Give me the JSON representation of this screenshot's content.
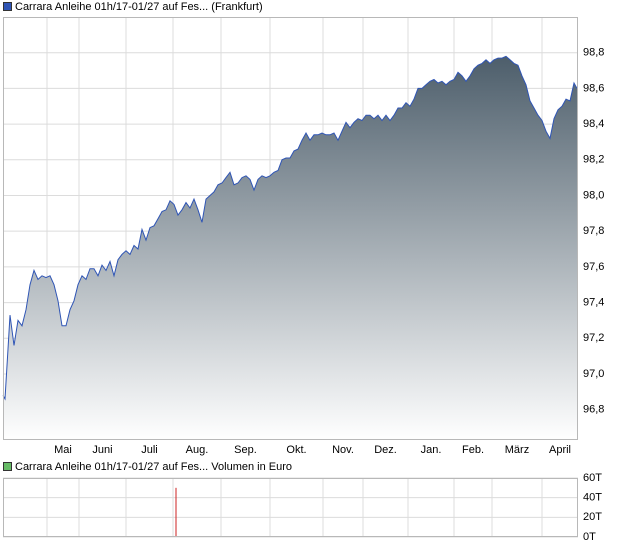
{
  "chart_data": [
    {
      "type": "area",
      "series": [
        {
          "name": "Carrara Anleihe 01h/17-01/27 auf Fes... (Frankfurt)",
          "color": "#2f55b5",
          "area_color": "#4d5e6b",
          "x": [
            0,
            2,
            5,
            7,
            11,
            15,
            19,
            23,
            27,
            31,
            35,
            39,
            43,
            47,
            51,
            55,
            59,
            63,
            67,
            71,
            75,
            79,
            83,
            87,
            91,
            95,
            99,
            103,
            107,
            111,
            115,
            119,
            123,
            127,
            131,
            135,
            139,
            143,
            147,
            151,
            155,
            159,
            163,
            167,
            171,
            175,
            179,
            183,
            187,
            191,
            195,
            199,
            203,
            207,
            211,
            215,
            219,
            223,
            227,
            231,
            235,
            239,
            243,
            247,
            251,
            255,
            259,
            263,
            267,
            271,
            275,
            279,
            283,
            287,
            291,
            295,
            299,
            303,
            307,
            311,
            315,
            319,
            323,
            327,
            331,
            335,
            339,
            343,
            347,
            351,
            355,
            359,
            363,
            367,
            371,
            375,
            379,
            383,
            387,
            391,
            395,
            399,
            403,
            407,
            411,
            415,
            419,
            423,
            427,
            431,
            435,
            439,
            443,
            447,
            451,
            455,
            459,
            463,
            467,
            471,
            475,
            479,
            483,
            487,
            491,
            495,
            499,
            503,
            507,
            511,
            515,
            519,
            523,
            527,
            531,
            535,
            539,
            543,
            547,
            551,
            555,
            559,
            563,
            567,
            571,
            574
          ],
          "values": [
            96.88,
            96.86,
            97.14,
            97.33,
            97.16,
            97.3,
            97.27,
            97.36,
            97.5,
            97.58,
            97.53,
            97.55,
            97.54,
            97.55,
            97.5,
            97.41,
            97.27,
            97.27,
            97.36,
            97.41,
            97.5,
            97.55,
            97.53,
            97.59,
            97.59,
            97.55,
            97.61,
            97.58,
            97.63,
            97.55,
            97.64,
            97.67,
            97.69,
            97.67,
            97.72,
            97.7,
            97.81,
            97.75,
            97.82,
            97.83,
            97.87,
            97.91,
            97.92,
            97.97,
            97.95,
            97.89,
            97.92,
            97.96,
            97.93,
            97.98,
            97.92,
            97.85,
            97.98,
            98.0,
            98.02,
            98.06,
            98.07,
            98.1,
            98.13,
            98.06,
            98.07,
            98.1,
            98.11,
            98.09,
            98.03,
            98.09,
            98.11,
            98.1,
            98.11,
            98.13,
            98.14,
            98.2,
            98.21,
            98.21,
            98.25,
            98.26,
            98.31,
            98.35,
            98.31,
            98.34,
            98.34,
            98.35,
            98.34,
            98.34,
            98.35,
            98.31,
            98.36,
            98.41,
            98.38,
            98.41,
            98.43,
            98.42,
            98.45,
            98.45,
            98.43,
            98.45,
            98.42,
            98.45,
            98.42,
            98.45,
            98.49,
            98.49,
            98.52,
            98.5,
            98.54,
            98.6,
            98.6,
            98.62,
            98.64,
            98.65,
            98.63,
            98.64,
            98.62,
            98.64,
            98.65,
            98.69,
            98.67,
            98.64,
            98.67,
            98.71,
            98.73,
            98.74,
            98.76,
            98.74,
            98.76,
            98.77,
            98.77,
            98.78,
            98.76,
            98.74,
            98.73,
            98.67,
            98.62,
            98.53,
            98.49,
            98.45,
            98.42,
            98.36,
            98.32,
            98.43,
            98.48,
            98.5,
            98.54,
            98.53,
            98.63,
            98.6
          ]
        }
      ],
      "xlim": [
        0,
        575
      ],
      "xticks": [
        {
          "value": 44,
          "label": "Mai"
        },
        {
          "value": 76,
          "label": "Juni"
        },
        {
          "value": 123,
          "label": "Juli"
        },
        {
          "value": 170,
          "label": "Aug."
        },
        {
          "value": 218,
          "label": "Sep."
        },
        {
          "value": 267,
          "label": "Okt."
        },
        {
          "value": 320,
          "label": "Nov."
        },
        {
          "value": 360,
          "label": "Dez."
        },
        {
          "value": 405,
          "label": "Jan."
        },
        {
          "value": 451,
          "label": "Feb."
        },
        {
          "value": 489,
          "label": "März"
        },
        {
          "value": 539,
          "label": "April"
        }
      ],
      "ylim": [
        96.63,
        99.0
      ],
      "yticks": [
        {
          "value": 96.8,
          "label": "96,8"
        },
        {
          "value": 97.0,
          "label": "97,0"
        },
        {
          "value": 97.2,
          "label": "97,2"
        },
        {
          "value": 97.4,
          "label": "97,4"
        },
        {
          "value": 97.6,
          "label": "97,6"
        },
        {
          "value": 97.8,
          "label": "97,8"
        },
        {
          "value": 98.0,
          "label": "98,0"
        },
        {
          "value": 98.2,
          "label": "98,2"
        },
        {
          "value": 98.4,
          "label": "98,4"
        },
        {
          "value": 98.6,
          "label": "98,6"
        },
        {
          "value": 98.8,
          "label": "98,8"
        }
      ],
      "grid": true
    },
    {
      "type": "bar",
      "series": [
        {
          "name": "Carrara Anleihe 01h/17-01/27 auf Fes... Volumen in Euro",
          "color": "#cc2222",
          "legend_color": "#66bb66",
          "x": [
            173
          ],
          "values": [
            50000
          ]
        }
      ],
      "xlim": [
        0,
        575
      ],
      "ylim": [
        0,
        60000
      ],
      "yticks": [
        {
          "value": 0,
          "label": "0T"
        },
        {
          "value": 20000,
          "label": "20T"
        },
        {
          "value": 40000,
          "label": "40T"
        },
        {
          "value": 60000,
          "label": "60T"
        }
      ],
      "grid": true
    }
  ]
}
